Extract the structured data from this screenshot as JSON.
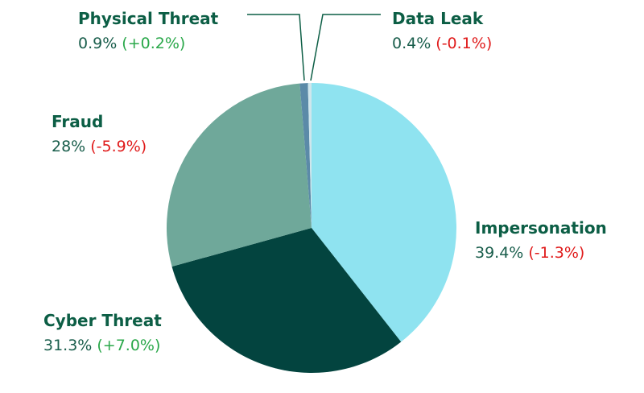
{
  "chart_data": {
    "type": "pie",
    "categories": [
      "Impersonation",
      "Cyber Threat",
      "Fraud",
      "Physical Threat",
      "Data Leak"
    ],
    "values": [
      39.4,
      31.3,
      28,
      0.9,
      0.4
    ],
    "value_labels": [
      "39.4%",
      "31.3%",
      "28%",
      "0.9%",
      "0.4%"
    ],
    "changes": [
      {
        "value": -1.3,
        "label": "(-1.3%)"
      },
      {
        "value": 7.0,
        "label": "(+7.0%)"
      },
      {
        "value": -5.9,
        "label": "(-5.9%)"
      },
      {
        "value": 0.2,
        "label": "(+0.2%)"
      },
      {
        "value": -0.1,
        "label": "(-0.1%)"
      }
    ],
    "colors": [
      "#8fe3f0",
      "#03443f",
      "#6fa89a",
      "#5b8aa8",
      "#cfe6ec"
    ],
    "positive_color": "#2aa84a",
    "negative_color": "#e01b1b"
  }
}
